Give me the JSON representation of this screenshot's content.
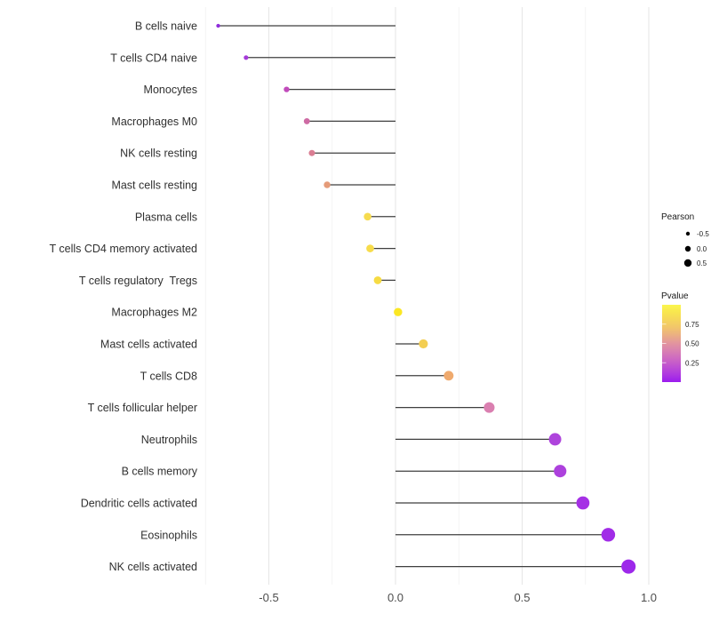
{
  "chart_data": {
    "type": "lollipop",
    "title": "",
    "xlabel": "",
    "ylabel": "",
    "xlim": [
      -0.77,
      1.04
    ],
    "x_ticks": [
      -0.5,
      0.0,
      0.5,
      1.0
    ],
    "x_tick_labels": [
      "-0.5",
      "0.0",
      "0.5",
      "1.0"
    ],
    "x_minor_gridlines": [
      -0.75,
      -0.25,
      0.25,
      0.75
    ],
    "grid": true,
    "categories": [
      "B cells naive",
      "T cells CD4 naive",
      "Monocytes",
      "Macrophages M0",
      "NK cells resting",
      "Mast cells resting",
      "Plasma cells",
      "T cells CD4 memory activated",
      "T cells regulatory  Tregs",
      "Macrophages M2",
      "Mast cells activated",
      "T cells CD8",
      "T cells follicular helper",
      "Neutrophils",
      "B cells memory",
      "Dendritic cells activated",
      "Eosinophils",
      "NK cells activated"
    ],
    "series": [
      {
        "name": "Pearson",
        "values": [
          -0.7,
          -0.59,
          -0.43,
          -0.35,
          -0.33,
          -0.27,
          -0.11,
          -0.1,
          -0.07,
          0.01,
          0.11,
          0.21,
          0.37,
          0.63,
          0.65,
          0.74,
          0.84,
          0.92
        ]
      },
      {
        "name": "Pvalue",
        "values": [
          0.05,
          0.11,
          0.28,
          0.35,
          0.42,
          0.55,
          0.85,
          0.86,
          0.88,
          0.96,
          0.8,
          0.62,
          0.43,
          0.13,
          0.12,
          0.08,
          0.06,
          0.04
        ]
      }
    ],
    "point_colors": [
      "#8F2CDB",
      "#A53AD9",
      "#C14BBB",
      "#CE6BA4",
      "#DA7E93",
      "#E59B79",
      "#F6DB4F",
      "#F7DC4B",
      "#F6DB43",
      "#FBE723",
      "#F3CE52",
      "#EFAA6E",
      "#DA7FB0",
      "#AE44DC",
      "#AD41DD",
      "#A530E5",
      "#A12CE7",
      "#9D28EA"
    ],
    "legend": {
      "size_legend": {
        "title": "Pearson",
        "entries": [
          {
            "label": "-0.5",
            "r": 2.2
          },
          {
            "label": "0.0",
            "r": 3.2
          },
          {
            "label": "0.5",
            "r": 4.2
          }
        ],
        "dot_color": "#000000"
      },
      "color_legend": {
        "title": "Pvalue",
        "tick_labels": [
          "0.75",
          "0.50",
          "0.25"
        ],
        "tick_values": [
          0.75,
          0.5,
          0.25
        ],
        "range": [
          0,
          1
        ],
        "gradient_top_to_bottom": [
          "#FBF64D",
          "#F8E54F",
          "#F5D55C",
          "#F1C46C",
          "#EAAD85",
          "#E2949F",
          "#D87FB2",
          "#CD68C2",
          "#BE50D2",
          "#AE38E0",
          "#9A1BEE"
        ]
      },
      "position": "right"
    },
    "colors": {
      "background": "#FFFFFF",
      "stem": "#3F3F3F",
      "grid_major": "#E6E6E6",
      "grid_minor": "#F2F2F2",
      "axis_tick_text": "#4D4D4D",
      "category_text": "#303030",
      "legend_text": "#1A1A1A"
    }
  }
}
